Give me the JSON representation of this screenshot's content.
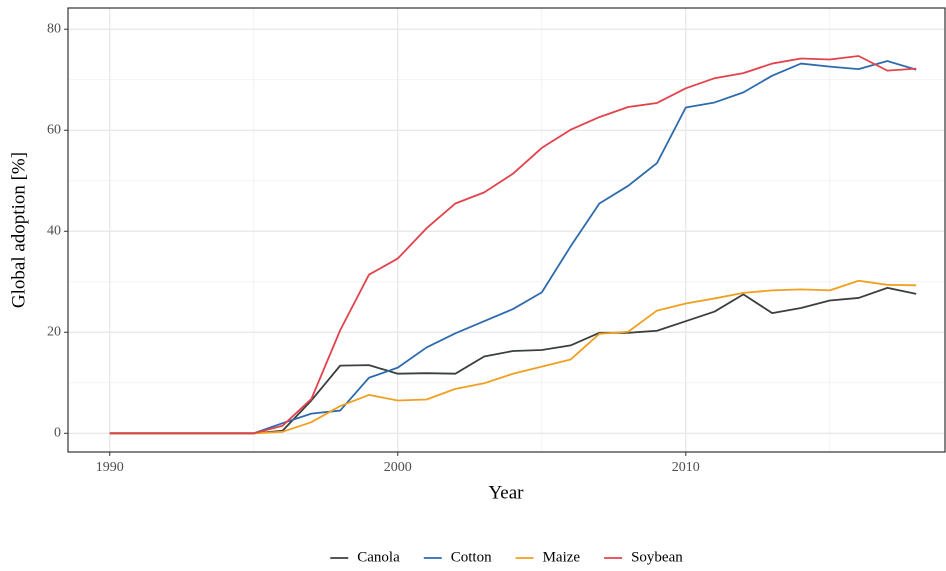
{
  "chart_data": {
    "type": "line",
    "x_label": "Year",
    "y_label": "Global adoption [%]",
    "x": [
      1990,
      1991,
      1992,
      1993,
      1994,
      1995,
      1996,
      1997,
      1998,
      1999,
      2000,
      2001,
      2002,
      2003,
      2004,
      2005,
      2006,
      2007,
      2008,
      2009,
      2010,
      2011,
      2012,
      2013,
      2014,
      2015,
      2016,
      2017,
      2018
    ],
    "series": [
      {
        "name": "Canola",
        "color": "#3b3f40",
        "values": [
          0,
          0,
          0,
          0,
          0,
          0,
          0.5,
          6.5,
          13.4,
          13.5,
          11.8,
          11.9,
          11.8,
          15.2,
          16.3,
          16.5,
          17.4,
          19.9,
          19.9,
          20.3,
          22.2,
          24.1,
          27.5,
          23.8,
          24.8,
          26.3,
          26.8,
          28.8,
          27.6
        ]
      },
      {
        "name": "Cotton",
        "color": "#2e6bad",
        "values": [
          0,
          0,
          0,
          0,
          0,
          0,
          2.0,
          3.9,
          4.5,
          11.0,
          13.0,
          17.0,
          19.8,
          22.2,
          24.6,
          27.9,
          37.0,
          45.5,
          49.0,
          53.5,
          64.5,
          65.5,
          67.5,
          70.8,
          73.2,
          72.6,
          72.1,
          73.7,
          72.0
        ]
      },
      {
        "name": "Maize",
        "color": "#f0a020",
        "values": [
          0,
          0,
          0,
          0,
          0,
          0,
          0.3,
          2.2,
          5.4,
          7.6,
          6.5,
          6.7,
          8.8,
          9.9,
          11.8,
          13.2,
          14.6,
          19.7,
          20.1,
          24.3,
          25.7,
          26.7,
          27.8,
          28.3,
          28.5,
          28.3,
          30.2,
          29.4,
          29.3
        ]
      },
      {
        "name": "Soybean",
        "color": "#e2434b",
        "values": [
          0,
          0,
          0,
          0,
          0,
          0,
          1.5,
          6.8,
          20.4,
          31.4,
          34.6,
          40.6,
          45.5,
          47.7,
          51.4,
          56.5,
          60.1,
          62.6,
          64.6,
          65.4,
          68.3,
          70.3,
          71.3,
          73.2,
          74.2,
          74.0,
          74.7,
          71.8,
          72.2
        ]
      }
    ],
    "xlim": [
      1988.55,
      2019
    ],
    "ylim": [
      -3.7,
      84.2
    ],
    "xticks": [
      1990,
      2000,
      2010
    ],
    "yticks": [
      0,
      20,
      40,
      60,
      80
    ],
    "minor_xticks": [
      1995,
      2005,
      2015
    ],
    "minor_yticks": [
      10,
      30,
      50,
      70
    ],
    "grid": true,
    "legend": "bottom"
  }
}
